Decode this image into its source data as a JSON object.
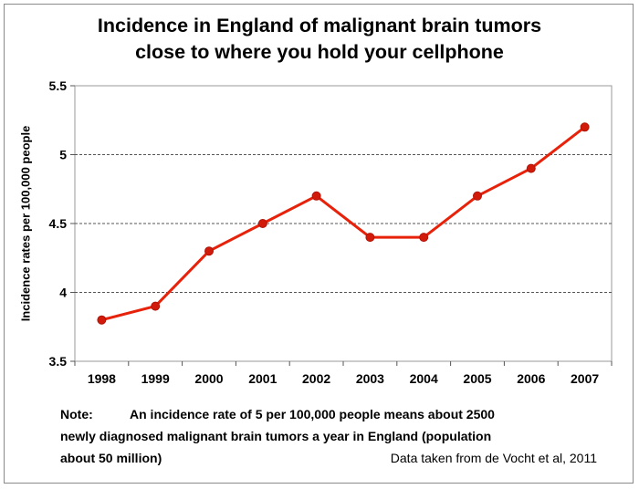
{
  "title": {
    "line1": "Incidence in England of malignant brain tumors",
    "line2": "close to where you hold your cellphone"
  },
  "note": {
    "label": "Note:",
    "text1": "An incidence rate of 5 per 100,000 people means about 2500",
    "text2": "newly diagnosed malignant brain tumors a year in England (population",
    "text3": "about 50 million)"
  },
  "source": "Data taken from de Vocht et al, 2011",
  "chart_data": {
    "type": "line",
    "title": "Incidence in England of malignant brain tumors close to where you hold your cellphone",
    "xlabel": "",
    "ylabel": "Incidence rates per 100,000 people",
    "categories": [
      "1998",
      "1999",
      "2000",
      "2001",
      "2002",
      "2003",
      "2004",
      "2005",
      "2006",
      "2007"
    ],
    "series": [
      {
        "values": [
          3.8,
          3.9,
          4.3,
          4.5,
          4.7,
          4.4,
          4.4,
          4.7,
          4.9,
          5.2
        ]
      }
    ],
    "yticks": [
      "3.5",
      "4",
      "4.5",
      "5",
      "5.5"
    ],
    "ylim": [
      3.5,
      5.5
    ],
    "grid": "dashed horizontal",
    "legend": "none",
    "line_color": "#e8220a",
    "marker_color": "#d11a0a"
  }
}
